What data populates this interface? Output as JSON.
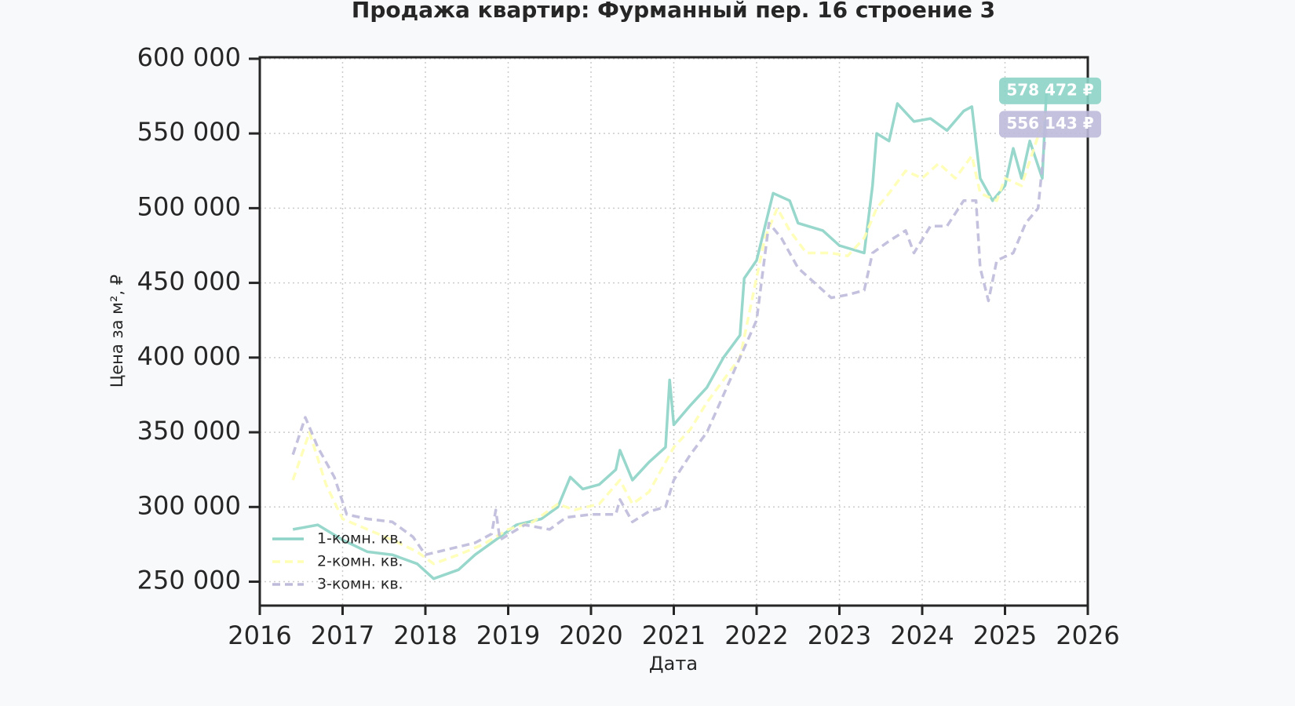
{
  "chart_data": {
    "type": "line",
    "title": "Продажа квартир: Фурманный пер. 16 строение 3",
    "x_label": "Дата",
    "y_label": "Цена за м², ₽",
    "xlim": [
      2016,
      2026
    ],
    "xticks": [
      2016,
      2017,
      2018,
      2019,
      2020,
      2021,
      2022,
      2023,
      2024,
      2025,
      2026
    ],
    "ylim": [
      234000,
      601000
    ],
    "yticks": [
      {
        "value": 250000,
        "label": "250 000"
      },
      {
        "value": 300000,
        "label": "300 000"
      },
      {
        "value": 350000,
        "label": "350 000"
      },
      {
        "value": 400000,
        "label": "400 000"
      },
      {
        "value": 450000,
        "label": "450 000"
      },
      {
        "value": 500000,
        "label": "500 000"
      },
      {
        "value": 550000,
        "label": "550 000"
      },
      {
        "value": 600000,
        "label": "600 000"
      }
    ],
    "grid": true,
    "legend": "lower left",
    "series": [
      {
        "name": "1-комн. кв.",
        "color": "#8dd3c7",
        "linestyle": "solid",
        "x": [
          2016.4,
          2016.7,
          2017.0,
          2017.3,
          2017.6,
          2017.9,
          2018.1,
          2018.4,
          2018.6,
          2018.9,
          2019.1,
          2019.4,
          2019.6,
          2019.75,
          2019.9,
          2020.1,
          2020.3,
          2020.35,
          2020.5,
          2020.7,
          2020.9,
          2020.95,
          2021.0,
          2021.2,
          2021.4,
          2021.6,
          2021.8,
          2021.85,
          2022.0,
          2022.2,
          2022.4,
          2022.5,
          2022.8,
          2023.0,
          2023.3,
          2023.4,
          2023.45,
          2023.6,
          2023.7,
          2023.9,
          2024.1,
          2024.3,
          2024.5,
          2024.6,
          2024.7,
          2024.85,
          2025.0,
          2025.1,
          2025.2,
          2025.3,
          2025.45,
          2025.5
        ],
        "values": [
          285000,
          288000,
          278000,
          270000,
          268000,
          262000,
          252000,
          258000,
          268000,
          280000,
          288000,
          292000,
          300000,
          320000,
          312000,
          315000,
          325000,
          338000,
          318000,
          330000,
          340000,
          385000,
          355000,
          368000,
          380000,
          400000,
          415000,
          453000,
          465000,
          510000,
          505000,
          490000,
          485000,
          475000,
          470000,
          515000,
          550000,
          545000,
          570000,
          558000,
          560000,
          552000,
          565000,
          568000,
          520000,
          505000,
          515000,
          540000,
          520000,
          545000,
          520000,
          578472
        ]
      },
      {
        "name": "2-комн. кв.",
        "color": "#ffffb3",
        "linestyle": "dashed",
        "x": [
          2016.4,
          2016.6,
          2016.8,
          2017.0,
          2017.3,
          2017.6,
          2017.9,
          2018.1,
          2018.4,
          2018.7,
          2019.0,
          2019.3,
          2019.6,
          2019.8,
          2020.1,
          2020.35,
          2020.5,
          2020.7,
          2020.9,
          2021.0,
          2021.2,
          2021.4,
          2021.6,
          2021.8,
          2021.95,
          2022.1,
          2022.25,
          2022.4,
          2022.6,
          2022.9,
          2023.1,
          2023.3,
          2023.45,
          2023.6,
          2023.8,
          2024.0,
          2024.2,
          2024.4,
          2024.6,
          2024.7,
          2024.9,
          2025.0,
          2025.2,
          2025.35,
          2025.5
        ],
        "values": [
          318000,
          350000,
          315000,
          292000,
          285000,
          278000,
          270000,
          262000,
          268000,
          275000,
          285000,
          290000,
          302000,
          298000,
          302000,
          318000,
          302000,
          310000,
          330000,
          340000,
          352000,
          370000,
          385000,
          400000,
          440000,
          480000,
          500000,
          485000,
          470000,
          470000,
          468000,
          480000,
          500000,
          510000,
          525000,
          520000,
          530000,
          520000,
          535000,
          510000,
          505000,
          520000,
          515000,
          540000,
          565000
        ]
      },
      {
        "name": "3-комн. кв.",
        "color": "#bebada",
        "linestyle": "dashed",
        "x": [
          2016.4,
          2016.55,
          2016.7,
          2016.9,
          2017.05,
          2017.3,
          2017.6,
          2017.85,
          2018.0,
          2018.3,
          2018.6,
          2018.8,
          2018.85,
          2018.9,
          2019.2,
          2019.5,
          2019.7,
          2020.0,
          2020.3,
          2020.35,
          2020.5,
          2020.7,
          2020.9,
          2021.0,
          2021.2,
          2021.4,
          2021.6,
          2021.8,
          2022.0,
          2022.15,
          2022.3,
          2022.5,
          2022.7,
          2022.9,
          2023.1,
          2023.3,
          2023.4,
          2023.6,
          2023.8,
          2023.9,
          2024.1,
          2024.3,
          2024.5,
          2024.65,
          2024.7,
          2024.8,
          2024.9,
          2025.1,
          2025.25,
          2025.4,
          2025.5
        ],
        "values": [
          335000,
          360000,
          340000,
          320000,
          295000,
          292000,
          290000,
          280000,
          268000,
          272000,
          276000,
          282000,
          298000,
          278000,
          288000,
          285000,
          293000,
          295000,
          295000,
          305000,
          290000,
          297000,
          300000,
          318000,
          335000,
          350000,
          375000,
          400000,
          425000,
          490000,
          480000,
          460000,
          450000,
          440000,
          442000,
          445000,
          470000,
          478000,
          485000,
          470000,
          488000,
          488000,
          505000,
          505000,
          460000,
          438000,
          465000,
          470000,
          490000,
          500000,
          556143
        ]
      }
    ],
    "annotations": [
      {
        "value": 578472,
        "label": "578 472 ₽",
        "color": "#8dd3c7"
      },
      {
        "value": 556143,
        "label": "556 143 ₽",
        "color": "#bebada"
      }
    ]
  }
}
